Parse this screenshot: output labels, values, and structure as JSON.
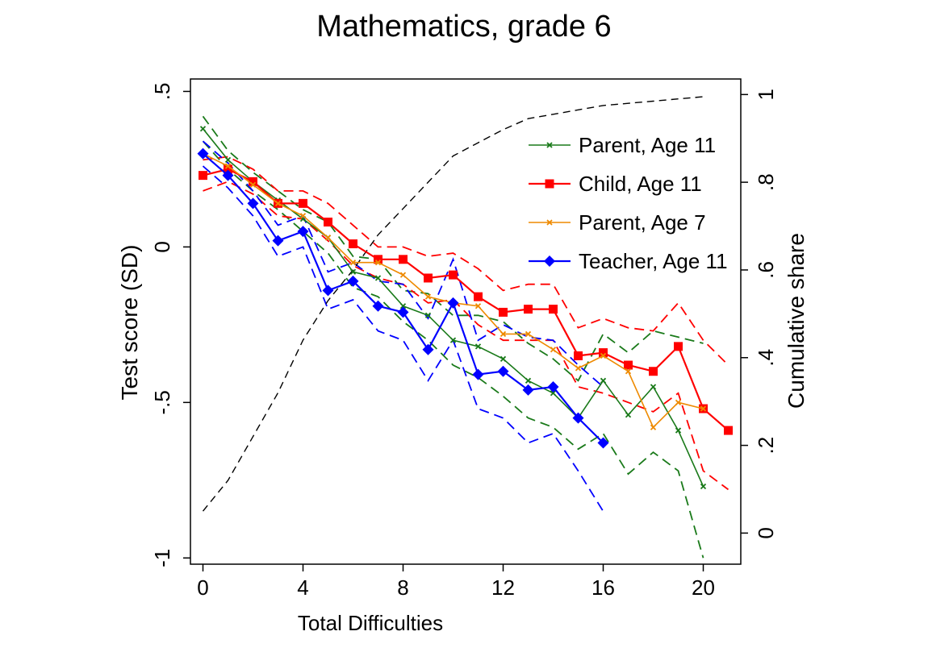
{
  "chart_data": {
    "type": "line",
    "title": "Mathematics, grade 6",
    "xlabel": "Total Difficulties",
    "ylabel": "Test score (SD)",
    "y2label": "Cumulative share",
    "xlim": [
      -0.5,
      21.5
    ],
    "ylim": [
      -1.02,
      0.54
    ],
    "y2lim": [
      0,
      1
    ],
    "xticks": [
      0,
      4,
      8,
      12,
      16,
      20
    ],
    "xtick_labels": [
      "0",
      "4",
      "8",
      "12",
      "16",
      "20"
    ],
    "yticks": [
      -1,
      -0.5,
      0,
      0.5
    ],
    "ytick_labels": [
      "-1",
      "-.5",
      "0",
      ".5"
    ],
    "y2ticks": [
      0,
      0.2,
      0.4,
      0.6,
      0.8,
      1
    ],
    "y2tick_labels": [
      "0",
      ".2",
      ".4",
      ".6",
      ".8",
      "1"
    ],
    "grid": false,
    "legend_position": "top-right",
    "series": [
      {
        "name": "Parent, Age 11",
        "color": "#1a7a1a",
        "marker": "x",
        "x": [
          0,
          1,
          2,
          3,
          4,
          5,
          6,
          7,
          8,
          9,
          10,
          11,
          12,
          13,
          14,
          15,
          16,
          17,
          18,
          19,
          20
        ],
        "y": [
          0.38,
          0.28,
          0.21,
          0.15,
          0.09,
          0.03,
          -0.08,
          -0.1,
          -0.19,
          -0.22,
          -0.3,
          -0.32,
          -0.36,
          -0.43,
          -0.47,
          -0.55,
          -0.43,
          -0.54,
          -0.45,
          -0.59,
          -0.77
        ],
        "ci_low": [
          0.34,
          0.25,
          0.18,
          0.12,
          0.05,
          -0.02,
          -0.13,
          -0.16,
          -0.24,
          -0.3,
          -0.38,
          -0.42,
          -0.48,
          -0.55,
          -0.58,
          -0.65,
          -0.6,
          -0.73,
          -0.66,
          -0.72,
          -1.0
        ],
        "ci_high": [
          0.42,
          0.31,
          0.24,
          0.18,
          0.12,
          0.08,
          -0.03,
          -0.04,
          -0.14,
          -0.15,
          -0.22,
          -0.22,
          -0.24,
          -0.31,
          -0.36,
          -0.43,
          -0.28,
          -0.34,
          -0.27,
          -0.29,
          -0.31
        ]
      },
      {
        "name": "Child, Age 11",
        "color": "#ff0000",
        "marker": "square",
        "x": [
          0,
          1,
          2,
          3,
          4,
          5,
          6,
          7,
          8,
          9,
          10,
          11,
          12,
          13,
          14,
          15,
          16,
          17,
          18,
          19,
          20,
          21
        ],
        "y": [
          0.23,
          0.25,
          0.21,
          0.14,
          0.14,
          0.08,
          0.01,
          -0.04,
          -0.04,
          -0.1,
          -0.09,
          -0.16,
          -0.21,
          -0.2,
          -0.2,
          -0.35,
          -0.34,
          -0.38,
          -0.4,
          -0.32,
          -0.52,
          -0.59
        ],
        "ci_low": [
          0.18,
          0.21,
          0.17,
          0.1,
          0.09,
          0.02,
          -0.06,
          -0.1,
          -0.12,
          -0.18,
          -0.17,
          -0.25,
          -0.3,
          -0.3,
          -0.3,
          -0.45,
          -0.47,
          -0.5,
          -0.53,
          -0.47,
          -0.72,
          -0.78
        ],
        "ci_high": [
          0.28,
          0.29,
          0.25,
          0.18,
          0.18,
          0.14,
          0.07,
          0.0,
          0.0,
          -0.03,
          -0.02,
          -0.07,
          -0.14,
          -0.12,
          -0.12,
          -0.26,
          -0.23,
          -0.26,
          -0.27,
          -0.18,
          -0.3,
          -0.38
        ]
      },
      {
        "name": "Parent, Age 7",
        "color": "#ee8a00",
        "marker": "x",
        "x": [
          0,
          1,
          2,
          3,
          4,
          5,
          6,
          7,
          8,
          9,
          10,
          11,
          12,
          13,
          14,
          15,
          16,
          17,
          18,
          19,
          20
        ],
        "y": [
          0.3,
          0.26,
          0.2,
          0.14,
          0.1,
          0.03,
          -0.05,
          -0.05,
          -0.09,
          -0.16,
          -0.18,
          -0.19,
          -0.28,
          -0.28,
          -0.33,
          -0.39,
          -0.35,
          -0.4,
          -0.58,
          -0.5,
          -0.52
        ]
      },
      {
        "name": "Teacher, Age 11",
        "color": "#0000ff",
        "marker": "diamond",
        "x": [
          0,
          1,
          2,
          3,
          4,
          5,
          6,
          7,
          8,
          9,
          10,
          11,
          12,
          13,
          14,
          15,
          16
        ],
        "y": [
          0.3,
          0.23,
          0.14,
          0.02,
          0.05,
          -0.14,
          -0.11,
          -0.19,
          -0.21,
          -0.33,
          -0.18,
          -0.41,
          -0.4,
          -0.46,
          -0.45,
          -0.55,
          -0.63
        ],
        "ci_low": [
          0.26,
          0.19,
          0.1,
          -0.03,
          0.0,
          -0.2,
          -0.17,
          -0.27,
          -0.3,
          -0.43,
          -0.3,
          -0.52,
          -0.55,
          -0.63,
          -0.6,
          -0.72,
          -0.85
        ],
        "ci_high": [
          0.34,
          0.27,
          0.18,
          0.07,
          0.1,
          -0.08,
          -0.05,
          -0.11,
          -0.12,
          -0.23,
          -0.04,
          -0.3,
          -0.25,
          -0.29,
          -0.3,
          -0.38,
          -0.45
        ]
      },
      {
        "name": "",
        "color": "#000000",
        "axis": "right",
        "style": "dashed",
        "x": [
          0,
          1,
          2,
          3,
          4,
          5,
          6,
          7,
          8,
          9,
          10,
          11,
          12,
          13,
          14,
          15,
          16,
          17,
          18,
          19,
          20
        ],
        "y": [
          0.05,
          0.12,
          0.22,
          0.32,
          0.44,
          0.53,
          0.6,
          0.68,
          0.74,
          0.8,
          0.86,
          0.89,
          0.92,
          0.945,
          0.955,
          0.965,
          0.975,
          0.98,
          0.985,
          0.99,
          0.995
        ]
      }
    ]
  }
}
